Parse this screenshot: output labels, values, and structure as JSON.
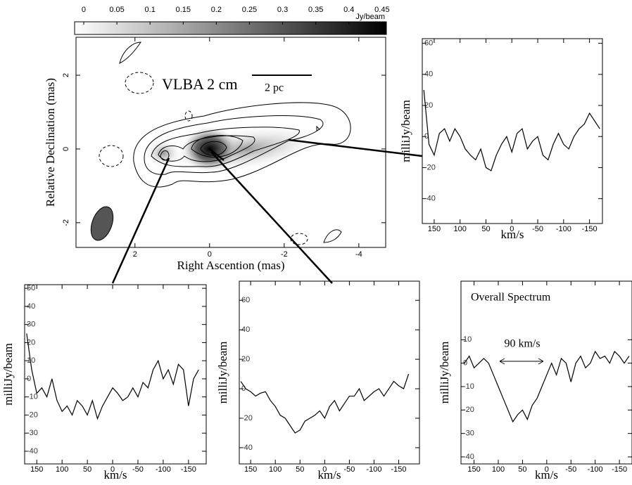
{
  "chart_data": [
    {
      "type": "colorbar",
      "unit_label": "Jy/beam",
      "xlim": [
        -0.0138,
        0.4565
      ],
      "xticks": [
        0,
        0.05,
        0.1,
        0.15,
        0.2,
        0.25,
        0.3,
        0.35,
        0.4,
        0.45
      ]
    },
    {
      "type": "image",
      "title": "VLBA 2 cm",
      "scale_label": "2 pc",
      "xlabel": "Right  Ascention (mas)",
      "ylabel": "Relative Declination (mas)",
      "xlim": [
        3.58,
        -4.72
      ],
      "ylim": [
        -2.67,
        3.03
      ],
      "xticks": [
        2,
        0,
        -2,
        -4
      ],
      "yticks": [
        -2,
        0,
        2
      ]
    },
    {
      "type": "line",
      "xlabel": "km/s",
      "ylabel": "milliJy/beam",
      "xlim": [
        173,
        -175
      ],
      "ylim": [
        -56,
        63
      ],
      "xticks": [
        150,
        100,
        50,
        0,
        -50,
        -100,
        -150
      ],
      "yticks": [
        -40,
        -20,
        0,
        20,
        40,
        60
      ],
      "x": [
        170,
        160,
        150,
        140,
        130,
        120,
        110,
        100,
        90,
        80,
        70,
        60,
        50,
        40,
        30,
        20,
        10,
        0,
        -10,
        -20,
        -30,
        -40,
        -50,
        -60,
        -70,
        -80,
        -90,
        -100,
        -110,
        -120,
        -130,
        -140,
        -150,
        -160,
        -170
      ],
      "series": [
        {
          "color": "#000000",
          "values": [
            30,
            -5,
            -12,
            2,
            5,
            -3,
            5,
            0,
            -8,
            -12,
            -15,
            -8,
            -20,
            -22,
            -12,
            -5,
            0,
            -10,
            2,
            5,
            -8,
            -3,
            0,
            -12,
            -15,
            -5,
            2,
            -5,
            -8,
            0,
            5,
            8,
            15,
            10,
            5
          ]
        }
      ]
    },
    {
      "type": "line",
      "xlabel": "km/s",
      "ylabel": "milliJy/beam",
      "xlim": [
        174,
        -185
      ],
      "ylim": [
        -47,
        52
      ],
      "xticks": [
        150,
        100,
        50,
        0,
        -50,
        -100,
        -150
      ],
      "yticks": [
        -40,
        -30,
        -20,
        -10,
        0,
        10,
        20,
        30,
        40,
        50
      ],
      "x": [
        170,
        160,
        150,
        140,
        130,
        120,
        110,
        100,
        90,
        80,
        70,
        60,
        50,
        40,
        30,
        20,
        10,
        0,
        -10,
        -20,
        -30,
        -40,
        -50,
        -60,
        -70,
        -80,
        -90,
        -100,
        -110,
        -120,
        -130,
        -140,
        -150,
        -160,
        -170
      ],
      "series": [
        {
          "color": "#000000",
          "values": [
            25,
            5,
            -8,
            -5,
            -10,
            0,
            -12,
            -18,
            -15,
            -20,
            -12,
            -15,
            -20,
            -12,
            -22,
            -15,
            -10,
            -5,
            -8,
            -12,
            -10,
            -5,
            -10,
            -2,
            -5,
            5,
            10,
            0,
            5,
            -3,
            8,
            5,
            -15,
            0,
            5
          ]
        }
      ]
    },
    {
      "type": "line",
      "xlabel": "km/s",
      "ylabel": "milliJy/beam",
      "xlim": [
        173,
        -192
      ],
      "ylim": [
        -51,
        73
      ],
      "xticks": [
        150,
        100,
        50,
        0,
        -50,
        -100,
        -150
      ],
      "yticks": [
        -40,
        -20,
        0,
        20,
        40,
        60
      ],
      "x": [
        170,
        160,
        150,
        140,
        130,
        120,
        110,
        100,
        90,
        80,
        70,
        60,
        50,
        40,
        30,
        20,
        10,
        0,
        -10,
        -20,
        -30,
        -40,
        -50,
        -60,
        -70,
        -80,
        -90,
        -100,
        -110,
        -120,
        -130,
        -140,
        -150,
        -160,
        -170
      ],
      "series": [
        {
          "color": "#000000",
          "values": [
            5,
            0,
            -2,
            -5,
            -3,
            -2,
            -8,
            -12,
            -18,
            -20,
            -25,
            -30,
            -28,
            -22,
            -20,
            -18,
            -15,
            -20,
            -12,
            -8,
            -15,
            -10,
            -5,
            -5,
            0,
            -8,
            -5,
            -2,
            0,
            -5,
            0,
            5,
            2,
            0,
            10
          ]
        }
      ]
    },
    {
      "type": "line",
      "title": "Overall Spectrum",
      "annotation": "90 km/s",
      "xlabel": "km/s",
      "ylabel": "milliJy/beam",
      "xlim": [
        177,
        -176
      ],
      "ylim": [
        -43,
        35
      ],
      "xticks": [
        150,
        100,
        50,
        0,
        -50,
        -100,
        -150
      ],
      "yticks": [
        -40,
        -30,
        -20,
        -10,
        0,
        10
      ],
      "x": [
        170,
        160,
        150,
        140,
        130,
        120,
        110,
        100,
        90,
        80,
        70,
        60,
        50,
        40,
        30,
        20,
        10,
        0,
        -10,
        -20,
        -30,
        -40,
        -50,
        -60,
        -70,
        -80,
        -90,
        -100,
        -110,
        -120,
        -130,
        -140,
        -150,
        -160,
        -170
      ],
      "series": [
        {
          "color": "#000000",
          "values": [
            0,
            3,
            -2,
            0,
            2,
            0,
            -5,
            -10,
            -15,
            -20,
            -25,
            -22,
            -20,
            -24,
            -18,
            -15,
            -10,
            -5,
            0,
            -5,
            2,
            0,
            -8,
            0,
            3,
            -2,
            0,
            5,
            2,
            3,
            0,
            5,
            3,
            0,
            3
          ]
        }
      ]
    }
  ]
}
